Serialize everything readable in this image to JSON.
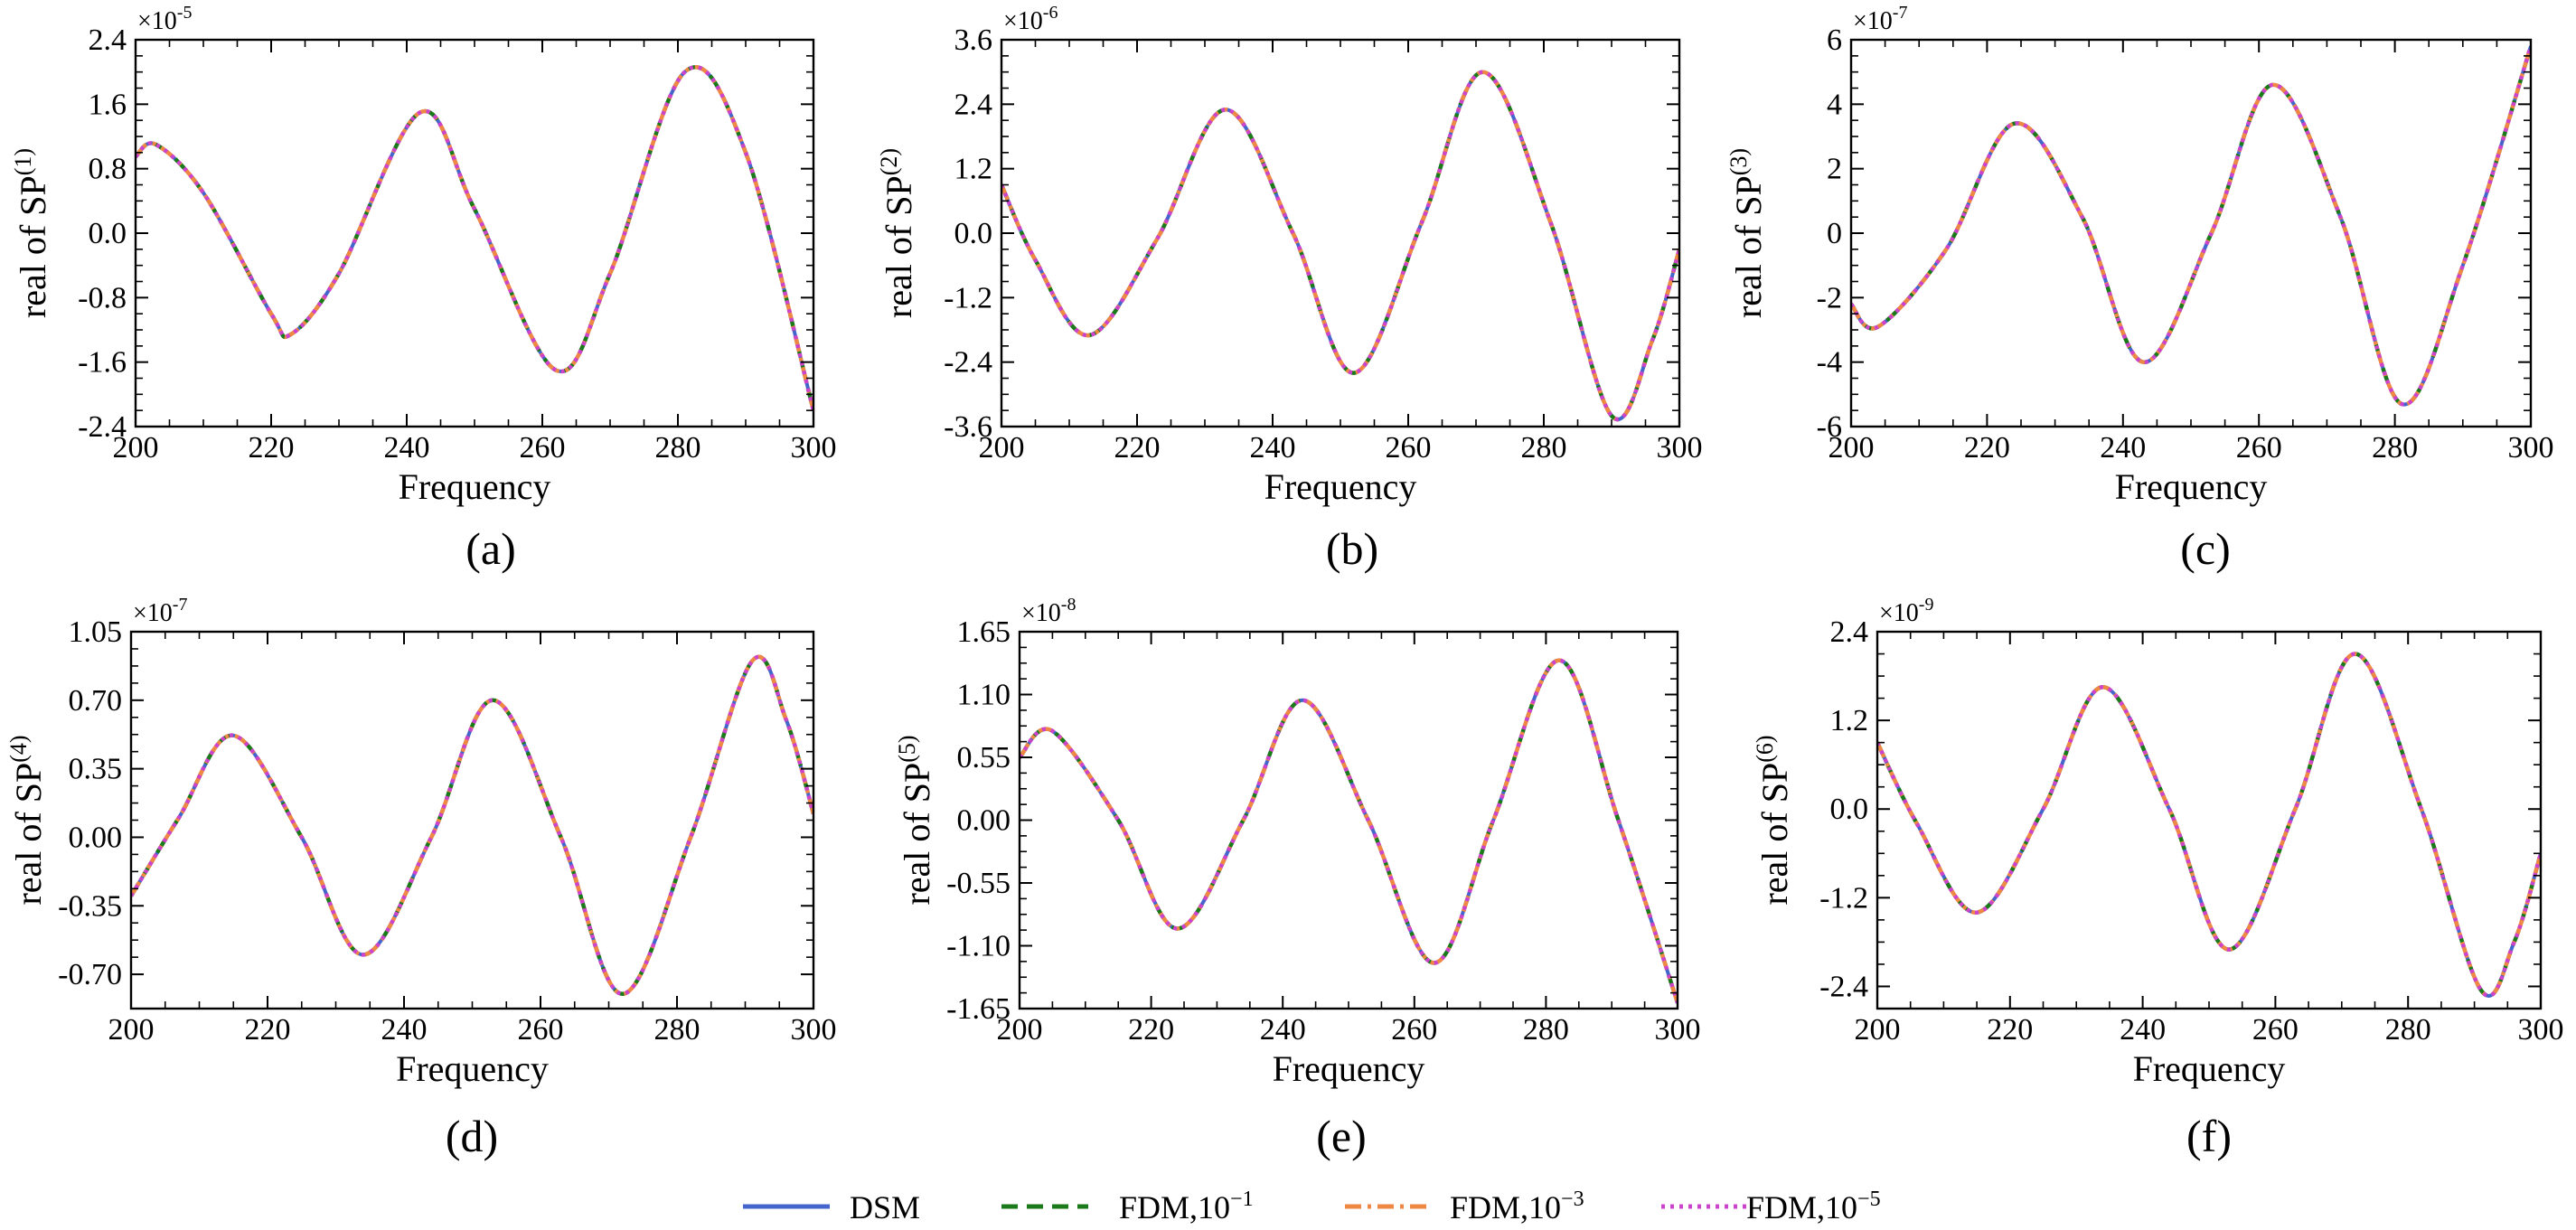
{
  "chart_data": [
    {
      "panel": "(a)",
      "type": "line",
      "title": "",
      "xlabel": "Frequency",
      "ylabel": "real of SP",
      "ylabel_sup": "(1)",
      "multiplier": "×10",
      "multiplier_exp": "-5",
      "xlim": [
        200,
        300
      ],
      "ylim": [
        -2.4,
        2.4
      ],
      "xticks": [
        "200",
        "220",
        "240",
        "260",
        "280",
        "300"
      ],
      "yticks": [
        "-2.4",
        "-1.6",
        "-0.8",
        "0.0",
        "0.8",
        "1.6",
        "2.4"
      ],
      "x": [
        200,
        203,
        210,
        220,
        223,
        230,
        242,
        250,
        262,
        270,
        281,
        290,
        300
      ],
      "series": [
        {
          "name": "DSM",
          "values": [
            0.95,
            1.1,
            0.5,
            -1.0,
            -1.25,
            -0.5,
            1.5,
            0.3,
            -1.7,
            -0.5,
            2.0,
            1.0,
            -2.2
          ]
        },
        {
          "name": "FDM,10^-1",
          "values": [
            0.95,
            1.1,
            0.5,
            -1.0,
            -1.25,
            -0.5,
            1.5,
            0.3,
            -1.7,
            -0.5,
            2.0,
            1.0,
            -2.2
          ]
        },
        {
          "name": "FDM,10^-3",
          "values": [
            0.95,
            1.1,
            0.5,
            -1.0,
            -1.25,
            -0.5,
            1.5,
            0.3,
            -1.7,
            -0.5,
            2.0,
            1.0,
            -2.2
          ]
        },
        {
          "name": "FDM,10^-5",
          "values": [
            0.95,
            1.1,
            0.5,
            -1.0,
            -1.25,
            -0.5,
            1.5,
            0.3,
            -1.7,
            -0.5,
            2.0,
            1.0,
            -2.2
          ]
        }
      ]
    },
    {
      "panel": "(b)",
      "type": "line",
      "title": "",
      "xlabel": "Frequency",
      "ylabel": "real of SP",
      "ylabel_sup": "(2)",
      "multiplier": "×10",
      "multiplier_exp": "-6",
      "xlim": [
        200,
        300
      ],
      "ylim": [
        -3.6,
        3.6
      ],
      "xticks": [
        "200",
        "220",
        "240",
        "260",
        "280",
        "300"
      ],
      "yticks": [
        "-3.6",
        "-2.4",
        "-1.2",
        "0.0",
        "1.2",
        "2.4",
        "3.6"
      ],
      "x": [
        200,
        205,
        213,
        223,
        233,
        243,
        252,
        262,
        271,
        281,
        290,
        296,
        300
      ],
      "series": [
        {
          "name": "DSM",
          "values": [
            0.9,
            -0.5,
            -1.9,
            -0.1,
            2.3,
            0.0,
            -2.6,
            0.2,
            3.0,
            0.2,
            -3.4,
            -2.0,
            -0.3
          ]
        },
        {
          "name": "FDM,10^-1",
          "values": [
            0.9,
            -0.5,
            -1.9,
            -0.1,
            2.3,
            0.0,
            -2.6,
            0.2,
            3.0,
            0.2,
            -3.4,
            -2.0,
            -0.3
          ]
        },
        {
          "name": "FDM,10^-3",
          "values": [
            0.9,
            -0.5,
            -1.9,
            -0.1,
            2.3,
            0.0,
            -2.6,
            0.2,
            3.0,
            0.2,
            -3.4,
            -2.0,
            -0.3
          ]
        },
        {
          "name": "FDM,10^-5",
          "values": [
            0.9,
            -0.5,
            -1.9,
            -0.1,
            2.3,
            0.0,
            -2.6,
            0.2,
            3.0,
            0.2,
            -3.4,
            -2.0,
            -0.3
          ]
        }
      ]
    },
    {
      "panel": "(c)",
      "type": "line",
      "title": "",
      "xlabel": "Frequency",
      "ylabel": "real of SP",
      "ylabel_sup": "(3)",
      "multiplier": "×10",
      "multiplier_exp": "-7",
      "xlim": [
        200,
        300
      ],
      "ylim": [
        -6,
        6
      ],
      "xticks": [
        "200",
        "220",
        "240",
        "260",
        "280",
        "300"
      ],
      "yticks": [
        "-6",
        "-4",
        "-2",
        "0",
        "2",
        "4",
        "6"
      ],
      "x": [
        200,
        204,
        214,
        224,
        234,
        243,
        253,
        262,
        272,
        281,
        290,
        300
      ],
      "series": [
        {
          "name": "DSM",
          "values": [
            -2.2,
            -2.9,
            -0.5,
            3.4,
            0.5,
            -4.0,
            0.0,
            4.6,
            0.5,
            -5.3,
            -1.0,
            5.8
          ]
        },
        {
          "name": "FDM,10^-1",
          "values": [
            -2.2,
            -2.9,
            -0.5,
            3.4,
            0.5,
            -4.0,
            0.0,
            4.6,
            0.5,
            -5.3,
            -1.0,
            5.8
          ]
        },
        {
          "name": "FDM,10^-3",
          "values": [
            -2.2,
            -2.9,
            -0.5,
            3.4,
            0.5,
            -4.0,
            0.0,
            4.6,
            0.5,
            -5.3,
            -1.0,
            5.8
          ]
        },
        {
          "name": "FDM,10^-5",
          "values": [
            -2.2,
            -2.9,
            -0.5,
            3.4,
            0.5,
            -4.0,
            0.0,
            4.6,
            0.5,
            -5.3,
            -1.0,
            5.8
          ]
        }
      ]
    },
    {
      "panel": "(d)",
      "type": "line",
      "title": "",
      "xlabel": "Frequency",
      "ylabel": "real of SP",
      "ylabel_sup": "(4)",
      "multiplier": "×10",
      "multiplier_exp": "-7",
      "xlim": [
        200,
        300
      ],
      "ylim": [
        -0.875,
        1.05
      ],
      "xticks": [
        "200",
        "220",
        "240",
        "260",
        "280",
        "300"
      ],
      "yticks": [
        "-0.70",
        "-0.35",
        "0.00",
        "0.35",
        "0.70",
        "1.05"
      ],
      "x": [
        200,
        207,
        215,
        225,
        234,
        244,
        253,
        263,
        272,
        282,
        291,
        296,
        300
      ],
      "series": [
        {
          "name": "DSM",
          "values": [
            -0.3,
            0.1,
            0.52,
            0.0,
            -0.6,
            0.0,
            0.7,
            0.0,
            -0.8,
            0.0,
            0.9,
            0.6,
            0.12
          ]
        },
        {
          "name": "FDM,10^-1",
          "values": [
            -0.3,
            0.1,
            0.52,
            0.0,
            -0.6,
            0.0,
            0.7,
            0.0,
            -0.8,
            0.0,
            0.9,
            0.6,
            0.12
          ]
        },
        {
          "name": "FDM,10^-3",
          "values": [
            -0.3,
            0.1,
            0.52,
            0.0,
            -0.6,
            0.0,
            0.7,
            0.0,
            -0.8,
            0.0,
            0.9,
            0.6,
            0.12
          ]
        },
        {
          "name": "FDM,10^-5",
          "values": [
            -0.3,
            0.1,
            0.52,
            0.0,
            -0.6,
            0.0,
            0.7,
            0.0,
            -0.8,
            0.0,
            0.9,
            0.6,
            0.12
          ]
        }
      ]
    },
    {
      "panel": "(e)",
      "type": "line",
      "title": "",
      "xlabel": "Frequency",
      "ylabel": "real of SP",
      "ylabel_sup": "(5)",
      "multiplier": "×10",
      "multiplier_exp": "-8",
      "xlim": [
        200,
        300
      ],
      "ylim": [
        -1.65,
        1.65
      ],
      "xticks": [
        "200",
        "220",
        "240",
        "260",
        "280",
        "300"
      ],
      "yticks": [
        "-1.65",
        "-1.10",
        "-0.55",
        "0.00",
        "0.55",
        "1.10",
        "1.65"
      ],
      "x": [
        200,
        205,
        215,
        224,
        234,
        243,
        253,
        263,
        272,
        282,
        291,
        300
      ],
      "series": [
        {
          "name": "DSM",
          "values": [
            0.55,
            0.78,
            0.0,
            -0.95,
            0.0,
            1.05,
            0.0,
            -1.25,
            0.0,
            1.4,
            0.0,
            -1.6
          ]
        },
        {
          "name": "FDM,10^-1",
          "values": [
            0.55,
            0.78,
            0.0,
            -0.95,
            0.0,
            1.05,
            0.0,
            -1.25,
            0.0,
            1.4,
            0.0,
            -1.6
          ]
        },
        {
          "name": "FDM,10^-3",
          "values": [
            0.55,
            0.78,
            0.0,
            -0.95,
            0.0,
            1.05,
            0.0,
            -1.25,
            0.0,
            1.4,
            0.0,
            -1.6
          ]
        },
        {
          "name": "FDM,10^-5",
          "values": [
            0.55,
            0.78,
            0.0,
            -0.95,
            0.0,
            1.05,
            0.0,
            -1.25,
            0.0,
            1.4,
            0.0,
            -1.6
          ]
        }
      ]
    },
    {
      "panel": "(f)",
      "type": "line",
      "title": "",
      "xlabel": "Frequency",
      "ylabel": "real of SP",
      "ylabel_sup": "(6)",
      "multiplier": "×10",
      "multiplier_exp": "-9",
      "xlim": [
        200,
        300
      ],
      "ylim": [
        -2.7,
        2.4
      ],
      "xticks": [
        "200",
        "220",
        "240",
        "260",
        "280",
        "300"
      ],
      "yticks": [
        "-2.4",
        "-1.2",
        "0.0",
        "1.2",
        "2.4"
      ],
      "x": [
        200,
        206,
        215,
        225,
        234,
        244,
        253,
        263,
        272,
        282,
        291,
        296,
        300
      ],
      "series": [
        {
          "name": "DSM",
          "values": [
            0.9,
            -0.2,
            -1.4,
            0.0,
            1.65,
            0.0,
            -1.9,
            0.0,
            2.1,
            0.0,
            -2.45,
            -1.8,
            -0.6
          ]
        },
        {
          "name": "FDM,10^-1",
          "values": [
            0.9,
            -0.2,
            -1.4,
            0.0,
            1.65,
            0.0,
            -1.9,
            0.0,
            2.1,
            0.0,
            -2.45,
            -1.8,
            -0.6
          ]
        },
        {
          "name": "FDM,10^-3",
          "values": [
            0.9,
            -0.2,
            -1.4,
            0.0,
            1.65,
            0.0,
            -1.9,
            0.0,
            2.1,
            0.0,
            -2.45,
            -1.8,
            -0.6
          ]
        },
        {
          "name": "FDM,10^-5",
          "values": [
            0.9,
            -0.2,
            -1.4,
            0.0,
            1.65,
            0.0,
            -1.9,
            0.0,
            2.1,
            0.0,
            -2.45,
            -1.8,
            -0.6
          ]
        }
      ]
    }
  ],
  "legend": {
    "placement": "bottom-center",
    "entries": [
      {
        "label": "DSM",
        "exp": "",
        "color": "#4466cc",
        "dash": "none"
      },
      {
        "label": "FDM,10",
        "exp": "−1",
        "color": "#1a7a1a",
        "dash": "18,10"
      },
      {
        "label": "FDM,10",
        "exp": "−3",
        "color": "#ee8844",
        "dash": "18,7,4,7"
      },
      {
        "label": "FDM,10",
        "exp": "−5",
        "color": "#cc44cc",
        "dash": "4,6"
      }
    ]
  },
  "series_styles": [
    {
      "color": "#4466cc",
      "dash": "none"
    },
    {
      "color": "#1a7a1a",
      "dash": "18,10"
    },
    {
      "color": "#ee8844",
      "dash": "18,7,4,7"
    },
    {
      "color": "#cc44cc",
      "dash": "4,6"
    }
  ]
}
